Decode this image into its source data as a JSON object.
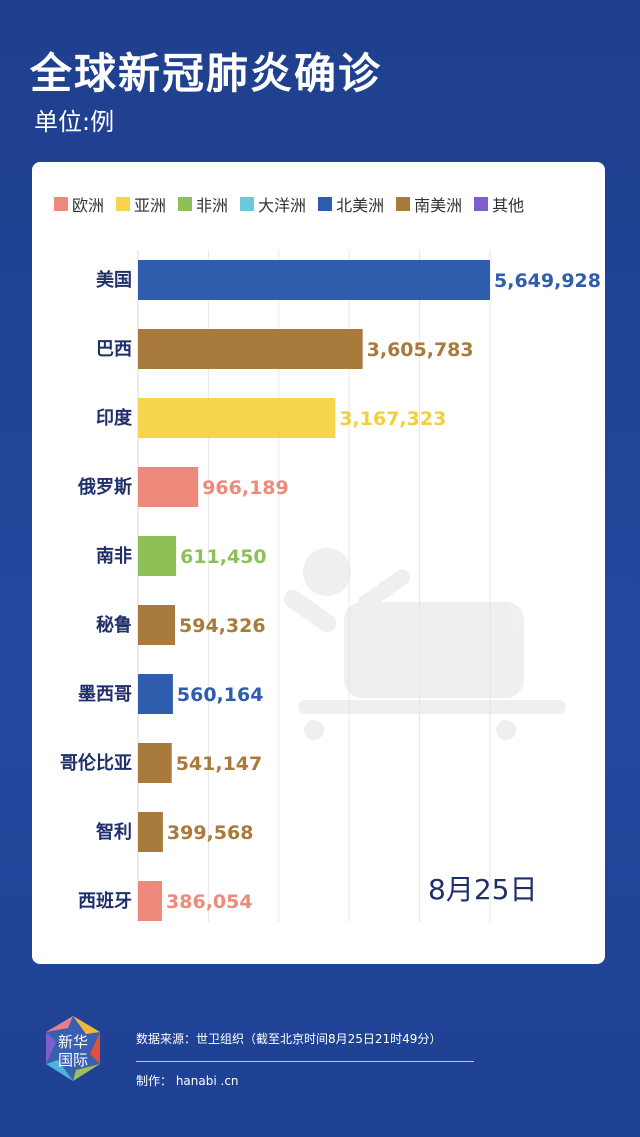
{
  "header": {
    "title": "全球新冠肺炎确诊",
    "unit": "单位:例"
  },
  "legend": [
    {
      "label": "欧洲",
      "color": "#ee8a7b"
    },
    {
      "label": "亚洲",
      "color": "#f7d44e"
    },
    {
      "label": "非洲",
      "color": "#8fc058"
    },
    {
      "label": "大洋洲",
      "color": "#6ac9dc"
    },
    {
      "label": "北美洲",
      "color": "#2f5dae"
    },
    {
      "label": "南美洲",
      "color": "#a87a3c"
    },
    {
      "label": "其他",
      "color": "#7d5fcf"
    }
  ],
  "chart_data": {
    "type": "bar",
    "orientation": "horizontal",
    "categories": [
      "美国",
      "巴西",
      "印度",
      "俄罗斯",
      "南非",
      "秘鲁",
      "墨西哥",
      "哥伦比亚",
      "智利",
      "西班牙"
    ],
    "values": [
      5649928,
      3605783,
      3167323,
      966189,
      611450,
      594326,
      560164,
      541147,
      399568,
      386054
    ],
    "value_labels": [
      "5,649,928",
      "3,605,783",
      "3,167,323",
      "966,189",
      "611,450",
      "594,326",
      "560,164",
      "541,147",
      "399,568",
      "386,054"
    ],
    "regions": [
      "北美洲",
      "南美洲",
      "亚洲",
      "欧洲",
      "非洲",
      "南美洲",
      "北美洲",
      "南美洲",
      "南美洲",
      "欧洲"
    ],
    "bar_colors": [
      "#2f5dae",
      "#a87a3c",
      "#f7d44e",
      "#ee8a7b",
      "#8fc058",
      "#a87a3c",
      "#2f5dae",
      "#a87a3c",
      "#a87a3c",
      "#ee8a7b"
    ],
    "label_colors": [
      "#2f5dae",
      "#a87a3c",
      "#f2cf3c",
      "#ee8a7b",
      "#8fc058",
      "#a87a3c",
      "#2f5dae",
      "#a87a3c",
      "#a87a3c",
      "#ee8a7b"
    ],
    "xlim": [
      0,
      5649928
    ],
    "grid": true,
    "legend_position": "top"
  },
  "date": "8月25日",
  "footer": {
    "logo_line1": "新华",
    "logo_line2": "国际",
    "source": "数据来源：世卫组织（截至北京时间8月25日21时49分）",
    "credit": "制作： hanabi .cn"
  }
}
